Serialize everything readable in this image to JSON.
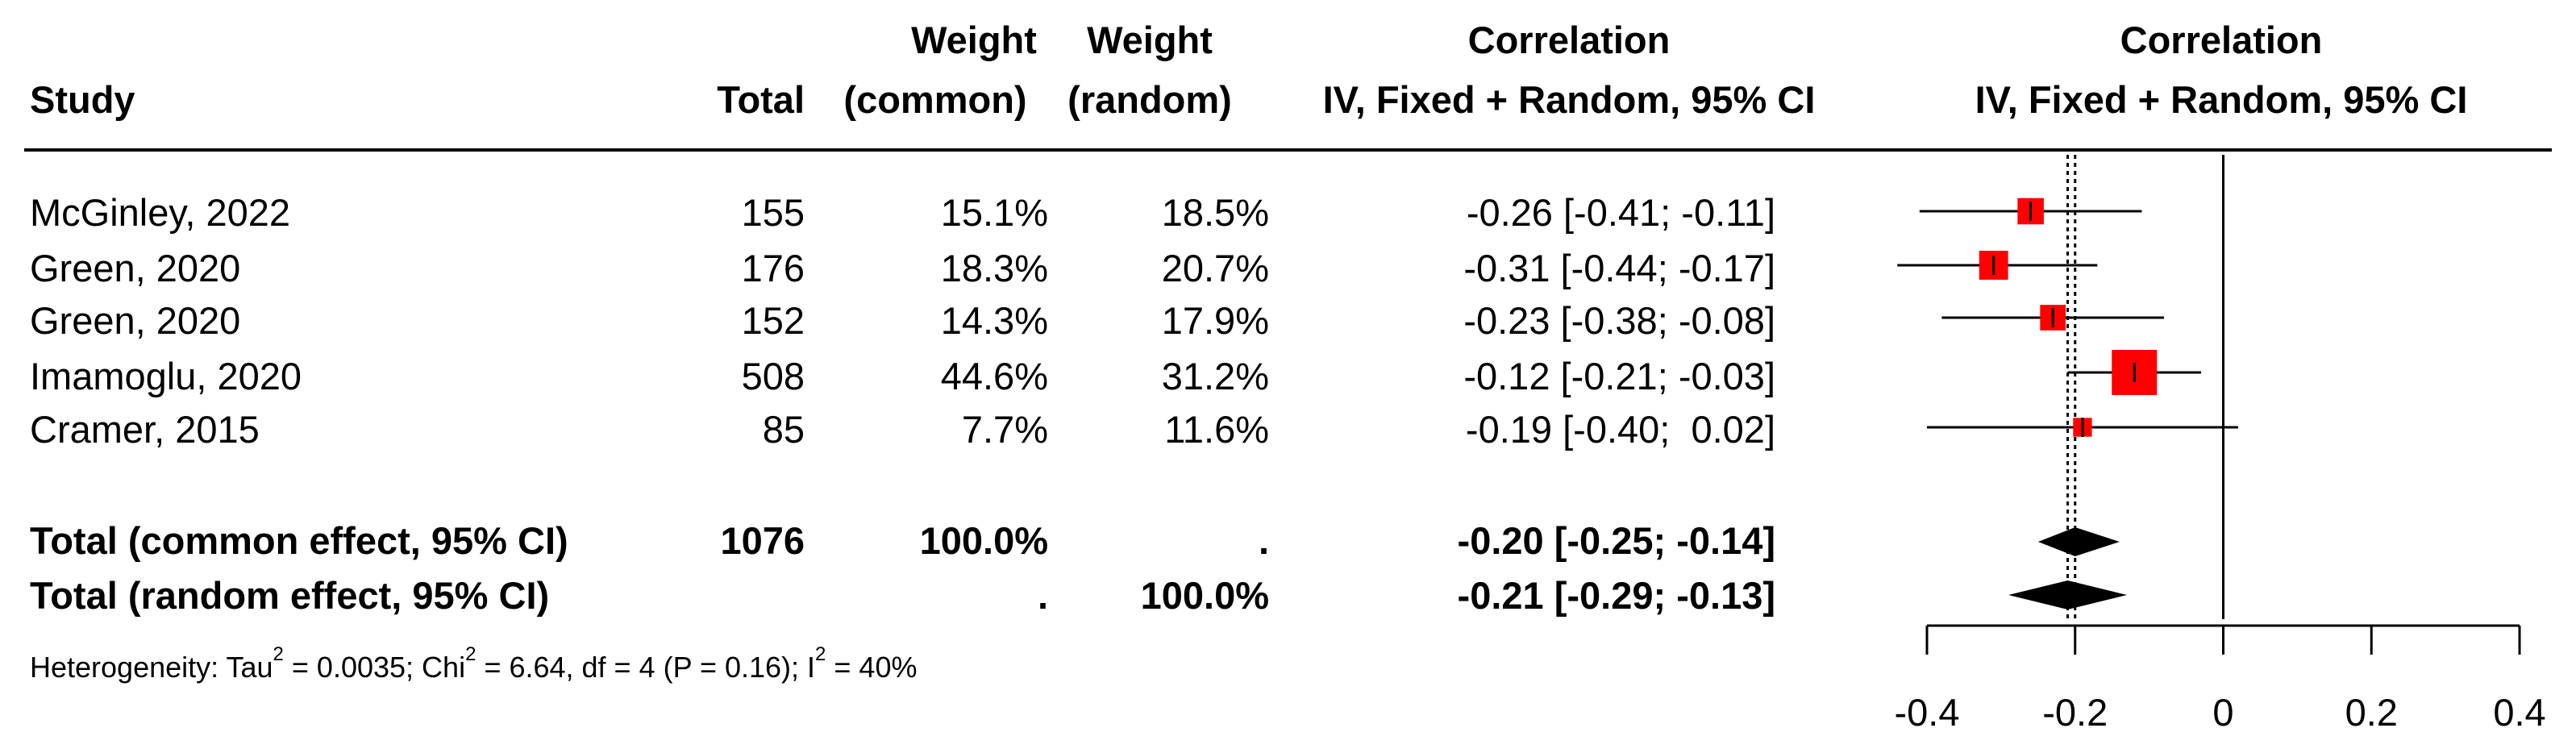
{
  "headers": {
    "study": "Study",
    "total": "Total",
    "weight_common_1": "Weight",
    "weight_common_2": "(common)",
    "weight_random_1": "Weight",
    "weight_random_2": "(random)",
    "corr_1": "Correlation",
    "corr_2": "IV, Fixed + Random, 95% CI",
    "plot_1": "Correlation",
    "plot_2": "IV, Fixed + Random, 95% CI"
  },
  "studies": [
    {
      "name": "McGinley, 2022",
      "total": "155",
      "w_common": "15.1%",
      "w_random": "18.5%",
      "ci_text": "-0.26 [-0.41; -0.11]"
    },
    {
      "name": "Green, 2020",
      "total": "176",
      "w_common": "18.3%",
      "w_random": "20.7%",
      "ci_text": "-0.31 [-0.44; -0.17]"
    },
    {
      "name": "Green, 2020",
      "total": "152",
      "w_common": "14.3%",
      "w_random": "17.9%",
      "ci_text": "-0.23 [-0.38; -0.08]"
    },
    {
      "name": "Imamoglu, 2020",
      "total": "508",
      "w_common": "44.6%",
      "w_random": "31.2%",
      "ci_text": "-0.12 [-0.21; -0.03]"
    },
    {
      "name": "Cramer, 2015",
      "total": "85",
      "w_common": "7.7%",
      "w_random": "11.6%",
      "ci_text": "-0.19 [-0.40;  0.02]"
    }
  ],
  "totals": [
    {
      "name": "Total (common effect, 95% CI)",
      "total": "1076",
      "w_common": "100.0%",
      "w_random": ".",
      "ci_text": "-0.20 [-0.25; -0.14]"
    },
    {
      "name": "Total (random effect, 95% CI)",
      "total": "",
      "w_common": ".",
      "w_random": "100.0%",
      "ci_text": "-0.21 [-0.29; -0.13]"
    }
  ],
  "heterogeneity": {
    "p1": "Heterogeneity: Tau",
    "s1": "2",
    "p2": " = 0.0035; Chi",
    "s2": "2",
    "p3": " = 6.64, df = 4 (P = 0.16); I",
    "s3": "2",
    "p4": " = 40%"
  },
  "chart_data": {
    "type": "forest",
    "xlim": [
      -0.4,
      0.4
    ],
    "ticks": [
      -0.4,
      -0.2,
      0,
      0.2,
      0.4
    ],
    "tick_labels": [
      "-0.4",
      "-0.2",
      "0",
      "0.2",
      "0.4"
    ],
    "reference_line": 0,
    "common_effect_line": -0.2,
    "random_effect_line": -0.21,
    "studies": [
      {
        "name": "McGinley, 2022",
        "estimate": -0.26,
        "lower": -0.41,
        "upper": -0.11,
        "weight_common": 15.1
      },
      {
        "name": "Green, 2020",
        "estimate": -0.31,
        "lower": -0.44,
        "upper": -0.17,
        "weight_common": 18.3
      },
      {
        "name": "Green, 2020",
        "estimate": -0.23,
        "lower": -0.38,
        "upper": -0.08,
        "weight_common": 14.3
      },
      {
        "name": "Imamoglu, 2020",
        "estimate": -0.12,
        "lower": -0.21,
        "upper": -0.03,
        "weight_common": 44.6
      },
      {
        "name": "Cramer, 2015",
        "estimate": -0.19,
        "lower": -0.4,
        "upper": 0.02,
        "weight_common": 7.7
      }
    ],
    "pooled": [
      {
        "name": "Total (common effect, 95% CI)",
        "estimate": -0.2,
        "lower": -0.25,
        "upper": -0.14
      },
      {
        "name": "Total (random effect, 95% CI)",
        "estimate": -0.21,
        "lower": -0.29,
        "upper": -0.13
      }
    ],
    "colors": {
      "box": "#ff0000",
      "line": "#000000",
      "diamond": "#000000"
    }
  }
}
